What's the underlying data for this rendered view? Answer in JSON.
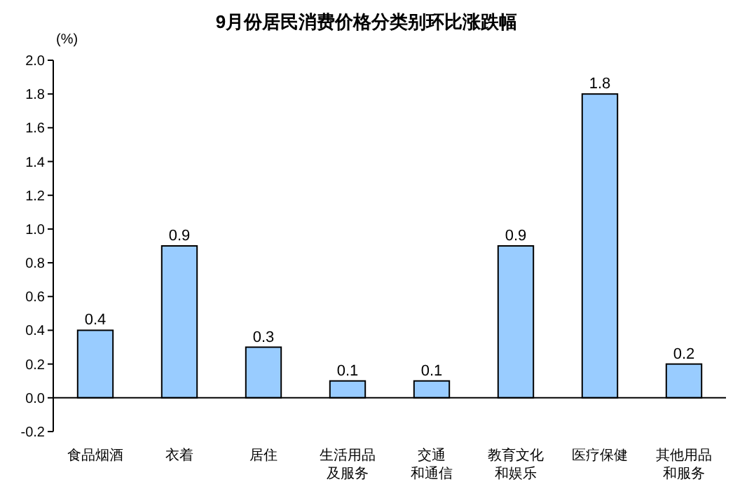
{
  "chart_data": {
    "type": "bar",
    "title": "9月份居民消费价格分类别环比涨跌幅",
    "ylabel": "(%)",
    "categories": [
      "食品烟酒",
      "衣着",
      "居住",
      "生活用品及服务",
      "交通和通信",
      "教育文化和娱乐",
      "医疗保健",
      "其他用品和服务"
    ],
    "values": [
      0.4,
      0.9,
      0.3,
      0.1,
      0.1,
      0.9,
      1.8,
      0.2
    ],
    "color": "#99ccff",
    "data_labels": true,
    "ylim": [
      -0.2,
      2.0
    ],
    "yticks": [
      {
        "value": 2.0,
        "label": "2.0"
      },
      1.8,
      1.6,
      1.4,
      1.2,
      {
        "value": 1.0,
        "label": "1.0"
      },
      0.8,
      0.6,
      0.4,
      0.2,
      {
        "value": 0,
        "label": "0.0"
      },
      -0.2
    ]
  }
}
